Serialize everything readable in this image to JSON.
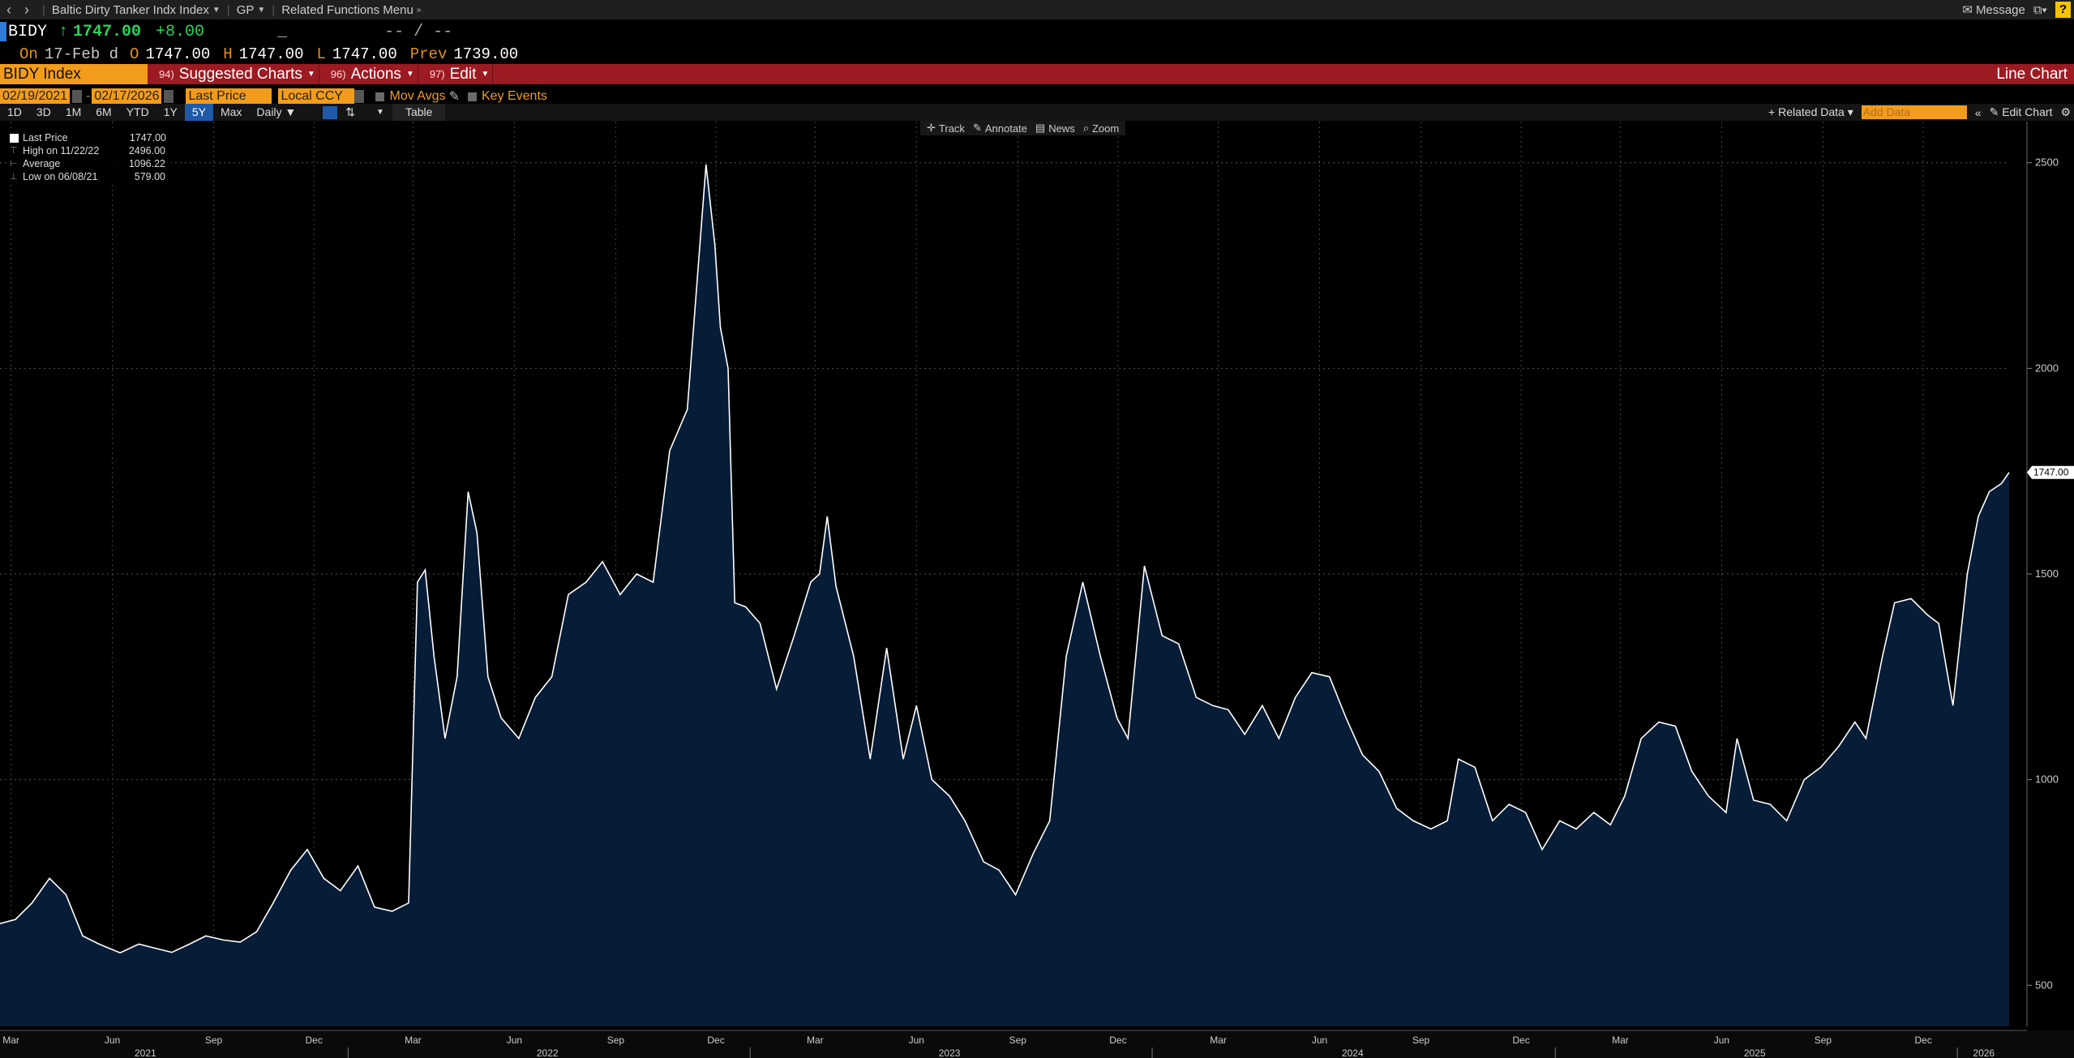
{
  "titlebar": {
    "security_name": "Baltic Dirty Tanker Indx Index",
    "function_code": "GP",
    "related_menu": "Related Functions Menu",
    "message_label": "Message",
    "help_label": "?"
  },
  "quote": {
    "ticker": "BIDY",
    "arrow": "↑",
    "last": "1747.00",
    "change": "+8.00",
    "blank": "_",
    "bid_ask": "-- / --"
  },
  "ohlc": {
    "date_label": "On",
    "date": "17-Feb d",
    "open_label": "O",
    "open": "1747.00",
    "high_label": "H",
    "high": "1747.00",
    "low_label": "L",
    "low": "1747.00",
    "prev_label": "Prev",
    "prev": "1739.00"
  },
  "redbar": {
    "security": "BIDY Index",
    "menus": [
      {
        "num": "94)",
        "label": "Suggested Charts"
      },
      {
        "num": "96)",
        "label": "Actions"
      },
      {
        "num": "97)",
        "label": "Edit"
      }
    ],
    "chart_type": "Line Chart"
  },
  "controls": {
    "start_date": "02/19/2021",
    "end_date": "02/17/2026",
    "field": "Last Price",
    "currency": "Local CCY",
    "mov_avgs": "Mov Avgs",
    "key_events": "Key Events"
  },
  "periods": {
    "items": [
      "1D",
      "3D",
      "1M",
      "6M",
      "YTD",
      "1Y",
      "5Y",
      "Max"
    ],
    "active": "5Y",
    "frequency": "Daily",
    "table_label": "Table",
    "related_data": "Related Data",
    "add_data_placeholder": "Add Data",
    "edit_chart": "Edit Chart"
  },
  "toolbar": {
    "track": "Track",
    "annotate": "Annotate",
    "news": "News",
    "zoom": "Zoom"
  },
  "legend": {
    "rows": [
      {
        "label": "Last Price",
        "value": "1747.00"
      },
      {
        "label": "High on 11/22/22",
        "value": "2496.00"
      },
      {
        "label": "Average",
        "value": "1096.22"
      },
      {
        "label": "Low on 06/08/21",
        "value": "579.00"
      }
    ]
  },
  "colors": {
    "background": "#000000",
    "line": "#ffffff",
    "fill": "#061c37",
    "accent_orange": "#f39c1b",
    "red_bar": "#9c1a22",
    "positive": "#28d35a"
  },
  "chart_data": {
    "type": "area",
    "title": "",
    "xlabel": "",
    "ylabel": "",
    "ylim": [
      400,
      2600
    ],
    "xlim": [
      "2021-02-19",
      "2026-02-17"
    ],
    "y_ticks": [
      500,
      1000,
      1500,
      2000,
      2500
    ],
    "last_value_label": "1747.00",
    "x_month_ticks": [
      {
        "label": "Mar",
        "date": "2021-03-01"
      },
      {
        "label": "Jun",
        "date": "2021-06-01"
      },
      {
        "label": "Sep",
        "date": "2021-09-01"
      },
      {
        "label": "Dec",
        "date": "2021-12-01"
      },
      {
        "label": "Mar",
        "date": "2022-03-01"
      },
      {
        "label": "Jun",
        "date": "2022-06-01"
      },
      {
        "label": "Sep",
        "date": "2022-09-01"
      },
      {
        "label": "Dec",
        "date": "2022-12-01"
      },
      {
        "label": "Mar",
        "date": "2023-03-01"
      },
      {
        "label": "Jun",
        "date": "2023-06-01"
      },
      {
        "label": "Sep",
        "date": "2023-09-01"
      },
      {
        "label": "Dec",
        "date": "2023-12-01"
      },
      {
        "label": "Mar",
        "date": "2024-03-01"
      },
      {
        "label": "Jun",
        "date": "2024-06-01"
      },
      {
        "label": "Sep",
        "date": "2024-09-01"
      },
      {
        "label": "Dec",
        "date": "2024-12-01"
      },
      {
        "label": "Mar",
        "date": "2025-03-01"
      },
      {
        "label": "Jun",
        "date": "2025-06-01"
      },
      {
        "label": "Sep",
        "date": "2025-09-01"
      },
      {
        "label": "Dec",
        "date": "2025-12-01"
      }
    ],
    "x_year_ticks": [
      {
        "label": "2021",
        "date": "2021-07-01"
      },
      {
        "label": "2022",
        "date": "2022-07-01"
      },
      {
        "label": "2023",
        "date": "2023-07-01"
      },
      {
        "label": "2024",
        "date": "2024-07-01"
      },
      {
        "label": "2025",
        "date": "2025-07-01"
      },
      {
        "label": "2026",
        "date": "2026-01-25"
      }
    ],
    "series": [
      {
        "name": "Last Price",
        "points": [
          [
            "2021-02-19",
            650
          ],
          [
            "2021-03-05",
            660
          ],
          [
            "2021-03-20",
            700
          ],
          [
            "2021-04-05",
            760
          ],
          [
            "2021-04-20",
            720
          ],
          [
            "2021-05-05",
            620
          ],
          [
            "2021-05-20",
            600
          ],
          [
            "2021-06-08",
            579
          ],
          [
            "2021-06-25",
            600
          ],
          [
            "2021-07-10",
            590
          ],
          [
            "2021-07-25",
            580
          ],
          [
            "2021-08-10",
            600
          ],
          [
            "2021-08-25",
            620
          ],
          [
            "2021-09-10",
            610
          ],
          [
            "2021-09-25",
            605
          ],
          [
            "2021-10-10",
            630
          ],
          [
            "2021-10-25",
            700
          ],
          [
            "2021-11-10",
            780
          ],
          [
            "2021-11-25",
            830
          ],
          [
            "2021-12-10",
            760
          ],
          [
            "2021-12-25",
            730
          ],
          [
            "2022-01-10",
            790
          ],
          [
            "2022-01-25",
            690
          ],
          [
            "2022-02-10",
            680
          ],
          [
            "2022-02-25",
            700
          ],
          [
            "2022-03-05",
            1480
          ],
          [
            "2022-03-12",
            1510
          ],
          [
            "2022-03-20",
            1300
          ],
          [
            "2022-03-30",
            1100
          ],
          [
            "2022-04-10",
            1250
          ],
          [
            "2022-04-20",
            1700
          ],
          [
            "2022-04-28",
            1600
          ],
          [
            "2022-05-08",
            1250
          ],
          [
            "2022-05-20",
            1150
          ],
          [
            "2022-06-05",
            1100
          ],
          [
            "2022-06-20",
            1200
          ],
          [
            "2022-07-05",
            1250
          ],
          [
            "2022-07-20",
            1450
          ],
          [
            "2022-08-05",
            1480
          ],
          [
            "2022-08-20",
            1530
          ],
          [
            "2022-09-05",
            1450
          ],
          [
            "2022-09-20",
            1500
          ],
          [
            "2022-10-05",
            1480
          ],
          [
            "2022-10-20",
            1800
          ],
          [
            "2022-11-05",
            1900
          ],
          [
            "2022-11-22",
            2496
          ],
          [
            "2022-11-30",
            2300
          ],
          [
            "2022-12-05",
            2100
          ],
          [
            "2022-12-12",
            2000
          ],
          [
            "2022-12-18",
            1430
          ],
          [
            "2022-12-28",
            1420
          ],
          [
            "2023-01-10",
            1380
          ],
          [
            "2023-01-25",
            1220
          ],
          [
            "2023-02-10",
            1350
          ],
          [
            "2023-02-25",
            1480
          ],
          [
            "2023-03-05",
            1500
          ],
          [
            "2023-03-12",
            1640
          ],
          [
            "2023-03-20",
            1470
          ],
          [
            "2023-04-05",
            1300
          ],
          [
            "2023-04-20",
            1050
          ],
          [
            "2023-05-05",
            1320
          ],
          [
            "2023-05-20",
            1050
          ],
          [
            "2023-06-01",
            1180
          ],
          [
            "2023-06-15",
            1000
          ],
          [
            "2023-07-01",
            960
          ],
          [
            "2023-07-15",
            900
          ],
          [
            "2023-08-01",
            800
          ],
          [
            "2023-08-15",
            780
          ],
          [
            "2023-08-30",
            720
          ],
          [
            "2023-09-15",
            820
          ],
          [
            "2023-09-30",
            900
          ],
          [
            "2023-10-15",
            1300
          ],
          [
            "2023-10-30",
            1480
          ],
          [
            "2023-11-15",
            1300
          ],
          [
            "2023-11-30",
            1150
          ],
          [
            "2023-12-10",
            1100
          ],
          [
            "2023-12-25",
            1520
          ],
          [
            "2024-01-10",
            1350
          ],
          [
            "2024-01-25",
            1330
          ],
          [
            "2024-02-10",
            1200
          ],
          [
            "2024-02-25",
            1180
          ],
          [
            "2024-03-10",
            1170
          ],
          [
            "2024-03-25",
            1110
          ],
          [
            "2024-04-10",
            1180
          ],
          [
            "2024-04-25",
            1100
          ],
          [
            "2024-05-10",
            1200
          ],
          [
            "2024-05-25",
            1260
          ],
          [
            "2024-06-10",
            1250
          ],
          [
            "2024-06-25",
            1150
          ],
          [
            "2024-07-10",
            1060
          ],
          [
            "2024-07-25",
            1020
          ],
          [
            "2024-08-10",
            930
          ],
          [
            "2024-08-25",
            900
          ],
          [
            "2024-09-10",
            880
          ],
          [
            "2024-09-25",
            900
          ],
          [
            "2024-10-05",
            1050
          ],
          [
            "2024-10-20",
            1030
          ],
          [
            "2024-11-05",
            900
          ],
          [
            "2024-11-20",
            940
          ],
          [
            "2024-12-05",
            920
          ],
          [
            "2024-12-20",
            830
          ],
          [
            "2025-01-05",
            900
          ],
          [
            "2025-01-20",
            880
          ],
          [
            "2025-02-05",
            920
          ],
          [
            "2025-02-20",
            890
          ],
          [
            "2025-03-05",
            960
          ],
          [
            "2025-03-20",
            1100
          ],
          [
            "2025-04-05",
            1140
          ],
          [
            "2025-04-20",
            1130
          ],
          [
            "2025-05-05",
            1020
          ],
          [
            "2025-05-20",
            960
          ],
          [
            "2025-06-05",
            920
          ],
          [
            "2025-06-15",
            1100
          ],
          [
            "2025-06-30",
            950
          ],
          [
            "2025-07-15",
            940
          ],
          [
            "2025-07-30",
            900
          ],
          [
            "2025-08-15",
            1000
          ],
          [
            "2025-08-30",
            1030
          ],
          [
            "2025-09-15",
            1080
          ],
          [
            "2025-09-30",
            1140
          ],
          [
            "2025-10-10",
            1100
          ],
          [
            "2025-10-25",
            1300
          ],
          [
            "2025-11-05",
            1430
          ],
          [
            "2025-11-20",
            1440
          ],
          [
            "2025-12-05",
            1400
          ],
          [
            "2025-12-15",
            1380
          ],
          [
            "2025-12-28",
            1180
          ],
          [
            "2026-01-10",
            1500
          ],
          [
            "2026-01-20",
            1640
          ],
          [
            "2026-01-30",
            1700
          ],
          [
            "2026-02-10",
            1720
          ],
          [
            "2026-02-17",
            1747
          ]
        ]
      }
    ]
  }
}
